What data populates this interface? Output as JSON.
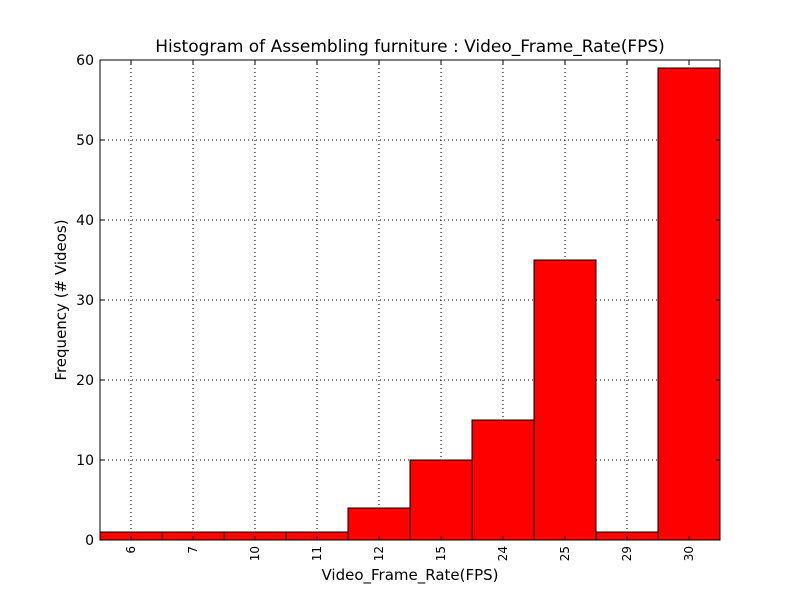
{
  "chart_data": {
    "type": "bar",
    "title": "Histogram of Assembling furniture : Video_Frame_Rate(FPS)",
    "xlabel": "Video_Frame_Rate(FPS)",
    "ylabel": "Frequency (# Videos)",
    "categories": [
      "6",
      "7",
      "10",
      "11",
      "12",
      "15",
      "24",
      "25",
      "29",
      "30"
    ],
    "values": [
      1,
      1,
      1,
      1,
      4,
      10,
      15,
      35,
      1,
      59
    ],
    "ylim": [
      0,
      60
    ],
    "yticks": [
      "0",
      "10",
      "20",
      "30",
      "40",
      "50",
      "60"
    ],
    "grid": true,
    "bar_color": "#ff0000",
    "edge_color": "#000000"
  }
}
